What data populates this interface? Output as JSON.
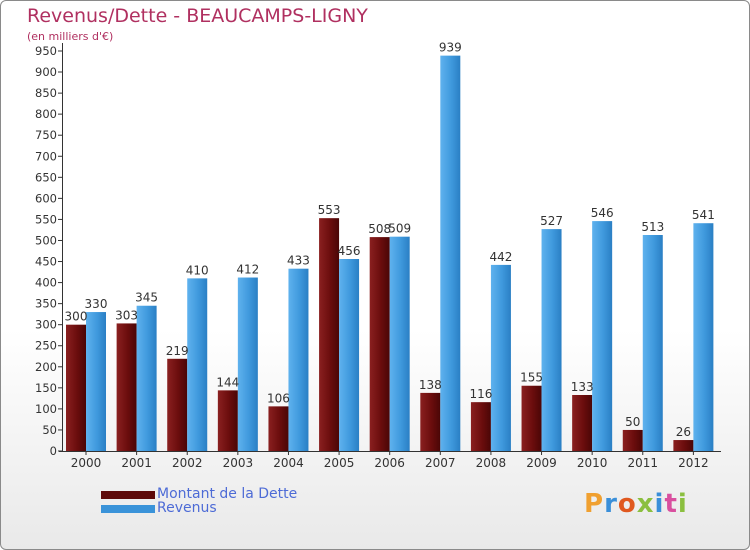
{
  "chart_data": {
    "type": "bar",
    "title": "Revenus/Dette - BEAUCAMPS-LIGNY",
    "subtitle": "(en milliers d'€)",
    "categories": [
      "2000",
      "2001",
      "2002",
      "2003",
      "2004",
      "2005",
      "2006",
      "2007",
      "2008",
      "2009",
      "2010",
      "2011",
      "2012"
    ],
    "series": [
      {
        "name": "Montant de la Dette",
        "color": "#6b0d0d",
        "values": [
          300,
          303,
          219,
          144,
          106,
          553,
          508,
          138,
          116,
          155,
          133,
          50,
          26
        ]
      },
      {
        "name": "Revenus",
        "color": "#3a93d9",
        "values": [
          330,
          345,
          410,
          412,
          433,
          456,
          509,
          939,
          442,
          527,
          546,
          513,
          541
        ]
      }
    ],
    "ylim": [
      0,
      950
    ],
    "yticks": [
      0,
      50,
      100,
      150,
      200,
      250,
      300,
      350,
      400,
      450,
      500,
      550,
      600,
      650,
      700,
      750,
      800,
      850,
      900,
      950
    ],
    "grid": false,
    "legend_position": "bottom-left"
  },
  "logo": {
    "text": "Proxiti"
  }
}
